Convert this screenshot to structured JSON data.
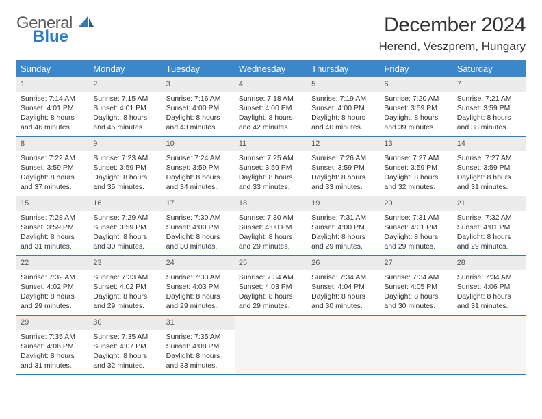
{
  "logo": {
    "line1": "General",
    "line2": "Blue"
  },
  "title": "December 2024",
  "location": "Herend, Veszprem, Hungary",
  "headerColor": "#3b87c8",
  "borderColor": "#2f7bbf",
  "dayHeaders": [
    "Sunday",
    "Monday",
    "Tuesday",
    "Wednesday",
    "Thursday",
    "Friday",
    "Saturday"
  ],
  "weeks": [
    [
      {
        "n": "1",
        "sr": "7:14 AM",
        "ss": "4:01 PM",
        "dl": "8 hours and 46 minutes."
      },
      {
        "n": "2",
        "sr": "7:15 AM",
        "ss": "4:01 PM",
        "dl": "8 hours and 45 minutes."
      },
      {
        "n": "3",
        "sr": "7:16 AM",
        "ss": "4:00 PM",
        "dl": "8 hours and 43 minutes."
      },
      {
        "n": "4",
        "sr": "7:18 AM",
        "ss": "4:00 PM",
        "dl": "8 hours and 42 minutes."
      },
      {
        "n": "5",
        "sr": "7:19 AM",
        "ss": "4:00 PM",
        "dl": "8 hours and 40 minutes."
      },
      {
        "n": "6",
        "sr": "7:20 AM",
        "ss": "3:59 PM",
        "dl": "8 hours and 39 minutes."
      },
      {
        "n": "7",
        "sr": "7:21 AM",
        "ss": "3:59 PM",
        "dl": "8 hours and 38 minutes."
      }
    ],
    [
      {
        "n": "8",
        "sr": "7:22 AM",
        "ss": "3:59 PM",
        "dl": "8 hours and 37 minutes."
      },
      {
        "n": "9",
        "sr": "7:23 AM",
        "ss": "3:59 PM",
        "dl": "8 hours and 35 minutes."
      },
      {
        "n": "10",
        "sr": "7:24 AM",
        "ss": "3:59 PM",
        "dl": "8 hours and 34 minutes."
      },
      {
        "n": "11",
        "sr": "7:25 AM",
        "ss": "3:59 PM",
        "dl": "8 hours and 33 minutes."
      },
      {
        "n": "12",
        "sr": "7:26 AM",
        "ss": "3:59 PM",
        "dl": "8 hours and 33 minutes."
      },
      {
        "n": "13",
        "sr": "7:27 AM",
        "ss": "3:59 PM",
        "dl": "8 hours and 32 minutes."
      },
      {
        "n": "14",
        "sr": "7:27 AM",
        "ss": "3:59 PM",
        "dl": "8 hours and 31 minutes."
      }
    ],
    [
      {
        "n": "15",
        "sr": "7:28 AM",
        "ss": "3:59 PM",
        "dl": "8 hours and 31 minutes."
      },
      {
        "n": "16",
        "sr": "7:29 AM",
        "ss": "3:59 PM",
        "dl": "8 hours and 30 minutes."
      },
      {
        "n": "17",
        "sr": "7:30 AM",
        "ss": "4:00 PM",
        "dl": "8 hours and 30 minutes."
      },
      {
        "n": "18",
        "sr": "7:30 AM",
        "ss": "4:00 PM",
        "dl": "8 hours and 29 minutes."
      },
      {
        "n": "19",
        "sr": "7:31 AM",
        "ss": "4:00 PM",
        "dl": "8 hours and 29 minutes."
      },
      {
        "n": "20",
        "sr": "7:31 AM",
        "ss": "4:01 PM",
        "dl": "8 hours and 29 minutes."
      },
      {
        "n": "21",
        "sr": "7:32 AM",
        "ss": "4:01 PM",
        "dl": "8 hours and 29 minutes."
      }
    ],
    [
      {
        "n": "22",
        "sr": "7:32 AM",
        "ss": "4:02 PM",
        "dl": "8 hours and 29 minutes."
      },
      {
        "n": "23",
        "sr": "7:33 AM",
        "ss": "4:02 PM",
        "dl": "8 hours and 29 minutes."
      },
      {
        "n": "24",
        "sr": "7:33 AM",
        "ss": "4:03 PM",
        "dl": "8 hours and 29 minutes."
      },
      {
        "n": "25",
        "sr": "7:34 AM",
        "ss": "4:03 PM",
        "dl": "8 hours and 29 minutes."
      },
      {
        "n": "26",
        "sr": "7:34 AM",
        "ss": "4:04 PM",
        "dl": "8 hours and 30 minutes."
      },
      {
        "n": "27",
        "sr": "7:34 AM",
        "ss": "4:05 PM",
        "dl": "8 hours and 30 minutes."
      },
      {
        "n": "28",
        "sr": "7:34 AM",
        "ss": "4:06 PM",
        "dl": "8 hours and 31 minutes."
      }
    ],
    [
      {
        "n": "29",
        "sr": "7:35 AM",
        "ss": "4:06 PM",
        "dl": "8 hours and 31 minutes."
      },
      {
        "n": "30",
        "sr": "7:35 AM",
        "ss": "4:07 PM",
        "dl": "8 hours and 32 minutes."
      },
      {
        "n": "31",
        "sr": "7:35 AM",
        "ss": "4:08 PM",
        "dl": "8 hours and 33 minutes."
      },
      null,
      null,
      null,
      null
    ]
  ],
  "labels": {
    "sunrise": "Sunrise:",
    "sunset": "Sunset:",
    "daylight": "Daylight:"
  }
}
